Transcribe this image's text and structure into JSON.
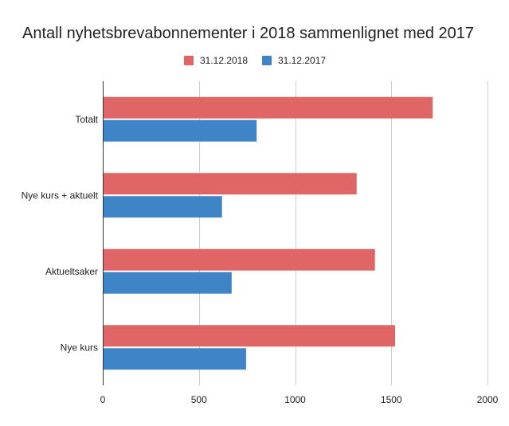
{
  "chart_data": {
    "type": "bar",
    "orientation": "horizontal",
    "title": "Antall nyhetsbrevabonnementer i 2018 sammenlignet med 2017",
    "xlabel": "",
    "ylabel": "",
    "xlim": [
      0,
      2000
    ],
    "xticks": [
      "0",
      "500",
      "1000",
      "1500",
      "2000"
    ],
    "grid": true,
    "legend_position": "top",
    "categories": [
      "Totalt",
      "Nye kurs + aktuelt",
      "Aktueltsaker",
      "Nye kurs"
    ],
    "series": [
      {
        "name": "31.12.2018",
        "color": "#e06666",
        "values": [
          1715,
          1320,
          1415,
          1520
        ]
      },
      {
        "name": "31.12.2017",
        "color": "#3d85c6",
        "values": [
          800,
          620,
          670,
          745
        ]
      }
    ]
  }
}
